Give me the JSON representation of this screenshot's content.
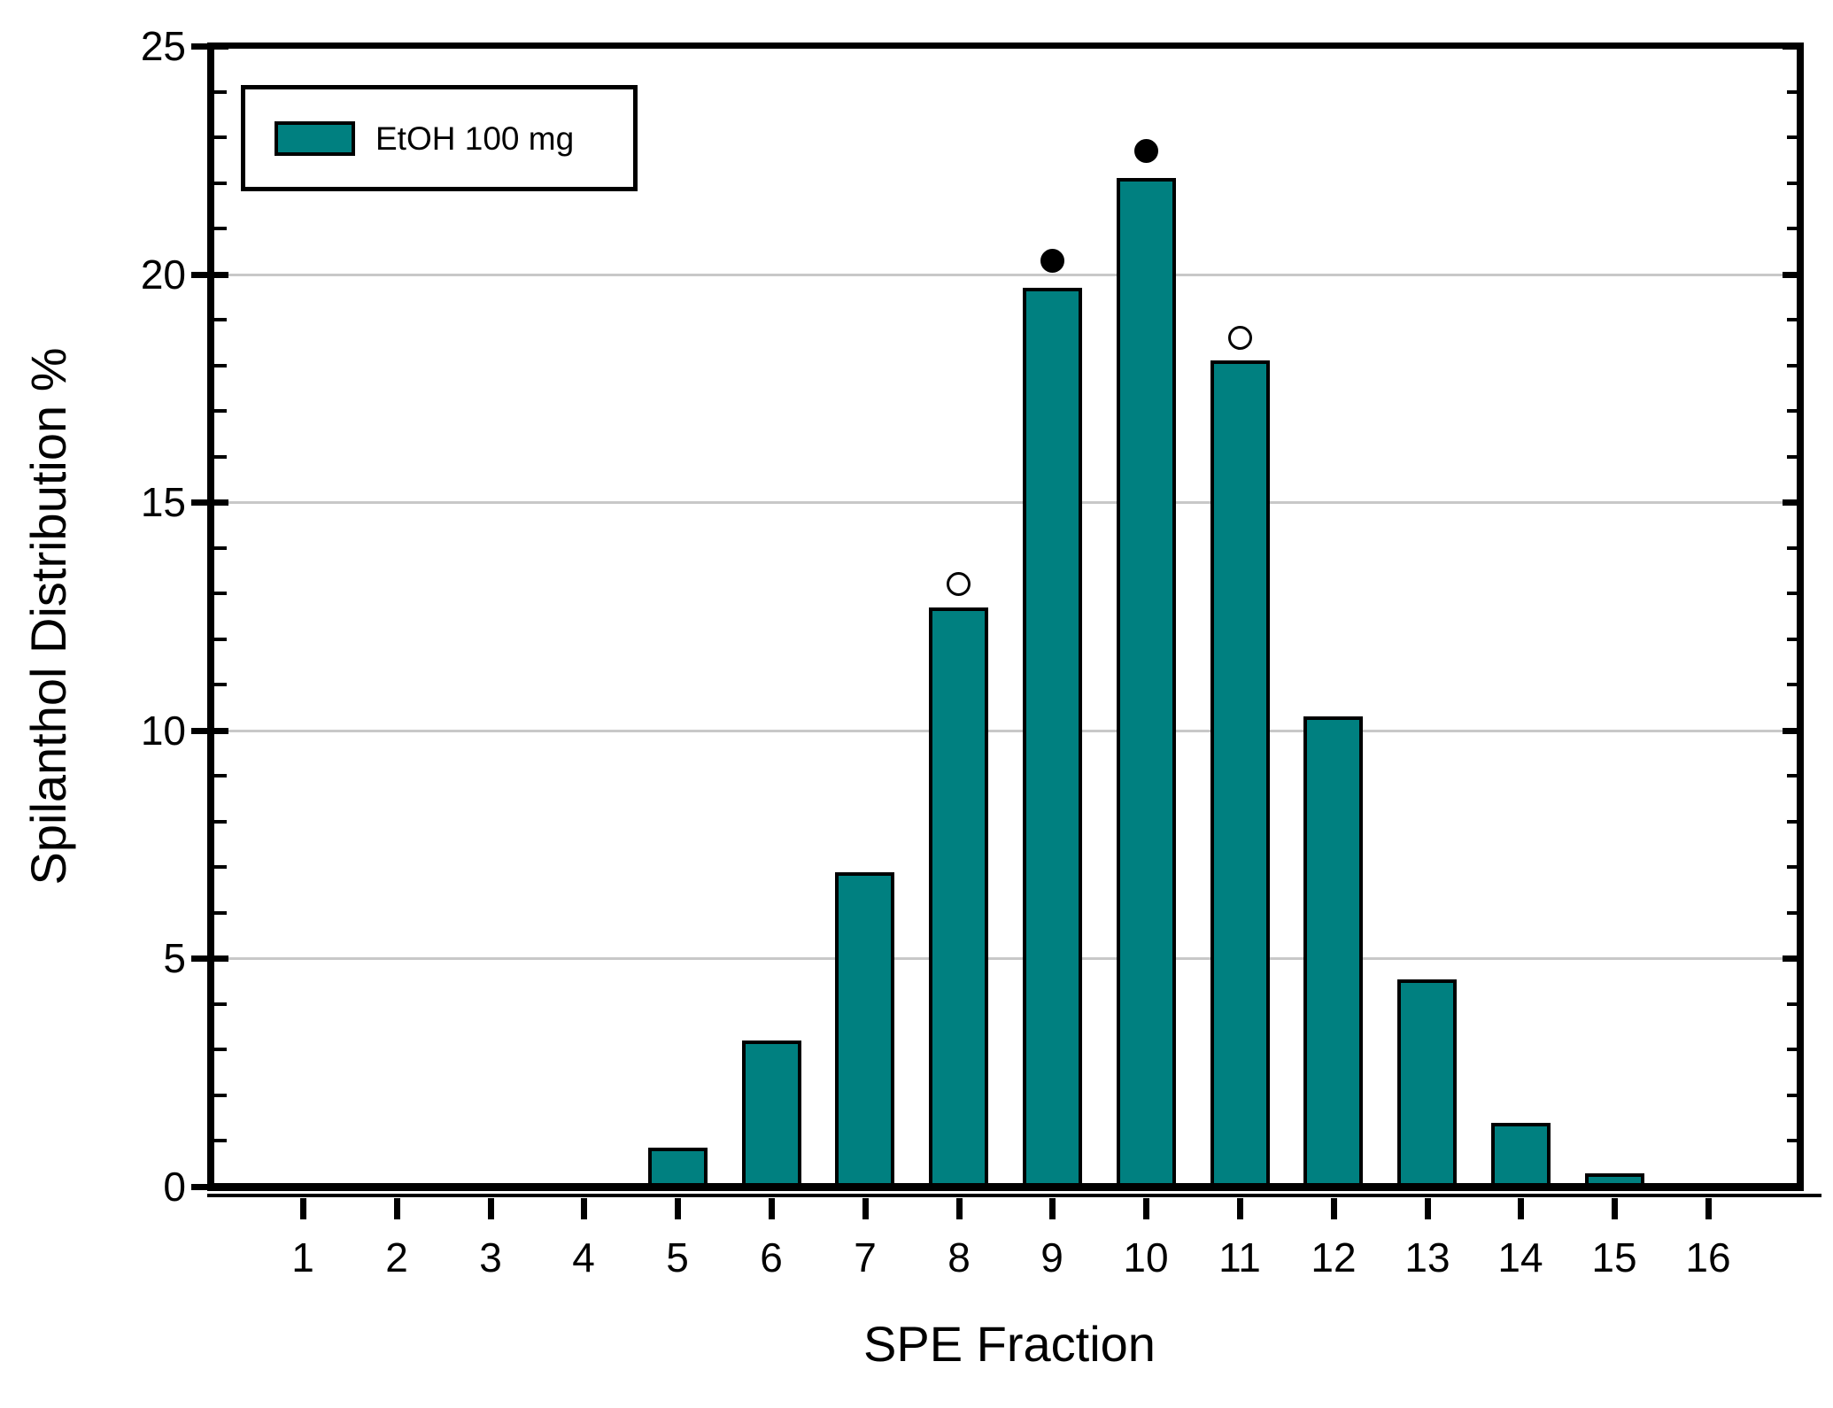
{
  "chart_data": {
    "type": "bar",
    "title": "",
    "xlabel": "SPE Fraction",
    "ylabel": "Spilanthol Distribution %",
    "categories": [
      "1",
      "2",
      "3",
      "4",
      "5",
      "6",
      "7",
      "8",
      "9",
      "10",
      "11",
      "12",
      "13",
      "14",
      "15",
      "16"
    ],
    "series": [
      {
        "name": "EtOH 100 mg",
        "color": "#008080",
        "values": [
          0,
          0,
          0,
          0.06,
          0.85,
          3.2,
          6.9,
          12.7,
          19.7,
          22.1,
          18.1,
          10.3,
          4.55,
          1.4,
          0.3,
          0.08
        ]
      }
    ],
    "markers": [
      {
        "category": "8",
        "value": 13.2,
        "style": "open"
      },
      {
        "category": "9",
        "value": 20.3,
        "style": "filled"
      },
      {
        "category": "10",
        "value": 22.7,
        "style": "filled"
      },
      {
        "category": "11",
        "value": 18.6,
        "style": "open"
      }
    ],
    "ylim": [
      0,
      25
    ],
    "ytick_major": [
      0,
      5,
      10,
      15,
      20,
      25
    ],
    "ytick_minor_step": 1,
    "grid": {
      "y_major_lines": [
        5,
        10,
        15,
        20
      ],
      "on": true,
      "color": "#c8c8c8"
    },
    "legend": {
      "position": "top-left",
      "entries": [
        {
          "label": "EtOH 100 mg",
          "swatch_color": "#008080"
        }
      ]
    },
    "colors": {
      "bar_fill": "#008080",
      "bar_stroke": "#000000",
      "grid": "#c8c8c8",
      "axis": "#000000",
      "background": "#ffffff"
    }
  }
}
